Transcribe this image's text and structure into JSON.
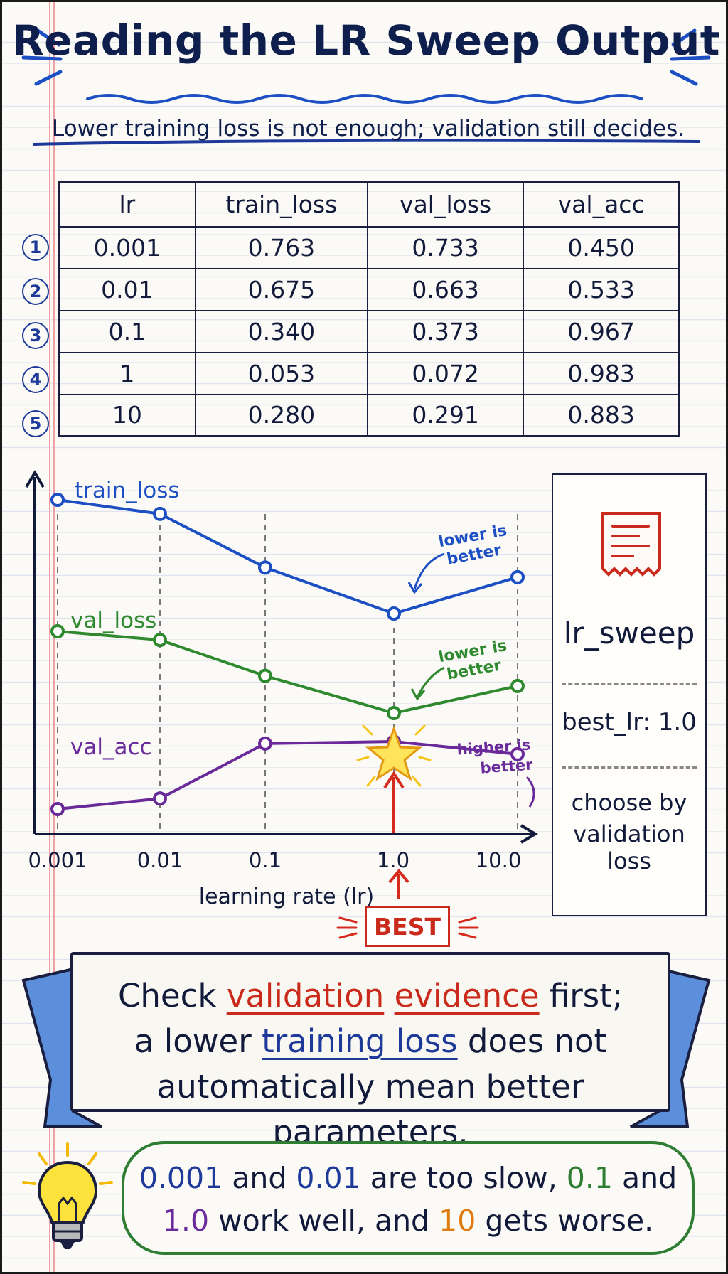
{
  "title": "Reading the LR Sweep Output",
  "subtitle": "Lower training loss is not enough; validation still decides.",
  "table": {
    "headers": [
      "lr",
      "train_loss",
      "val_loss",
      "val_acc"
    ],
    "rows": [
      {
        "num": "1",
        "cells": [
          "0.001",
          "0.763",
          "0.733",
          "0.450"
        ]
      },
      {
        "num": "2",
        "cells": [
          "0.01",
          "0.675",
          "0.663",
          "0.533"
        ]
      },
      {
        "num": "3",
        "cells": [
          "0.1",
          "0.340",
          "0.373",
          "0.967"
        ]
      },
      {
        "num": "4",
        "cells": [
          "1",
          "0.053",
          "0.072",
          "0.983"
        ]
      },
      {
        "num": "5",
        "cells": [
          "10",
          "0.280",
          "0.291",
          "0.883"
        ]
      }
    ]
  },
  "chart": {
    "xlabel": "learning rate (lr)",
    "tick_labels": [
      "0.001",
      "0.01",
      "0.1",
      "1.0",
      "10.0"
    ],
    "series_labels": {
      "train": "train_loss",
      "val": "val_loss",
      "acc": "val_acc"
    },
    "annotations": {
      "train_1": "lower is",
      "train_2": "better",
      "val_1": "lower is",
      "val_2": "better",
      "acc_1": "higher is",
      "acc_2": "better"
    },
    "best_label": "BEST",
    "colors": {
      "train": "#1d4fc4",
      "val": "#2f8a2f",
      "acc": "#6a2a9a",
      "best": "#d62a1c",
      "star": "#f5c518"
    }
  },
  "chart_data": {
    "type": "line",
    "x": [
      "0.001",
      "0.01",
      "0.1",
      "1.0",
      "10.0"
    ],
    "xlabel": "learning rate (lr)",
    "series": [
      {
        "name": "train_loss",
        "values": [
          0.763,
          0.675,
          0.34,
          0.053,
          0.28
        ]
      },
      {
        "name": "val_loss",
        "values": [
          0.733,
          0.663,
          0.373,
          0.072,
          0.291
        ]
      },
      {
        "name": "val_acc",
        "values": [
          0.45,
          0.533,
          0.967,
          0.983,
          0.883
        ]
      }
    ],
    "highlight": {
      "x": "1.0",
      "label": "BEST"
    }
  },
  "receipt": {
    "name": "lr_sweep",
    "best": "best_lr: 1.0",
    "rule_1": "choose by",
    "rule_2": "validation loss"
  },
  "banner": {
    "l1_a": "Check ",
    "l1_red1": "validation",
    "l1_sp": " ",
    "l1_red2": "evidence",
    "l1_b": " first;",
    "l2_a": "a lower ",
    "l2_blue": "training loss",
    "l2_b": " does not",
    "l3": "automatically mean better parameters."
  },
  "tip": {
    "a": "0.001",
    "b": " and ",
    "c": "0.01",
    "d": " are too slow, ",
    "e": "0.1",
    "f": " and",
    "g": "1.0",
    "h": " work well, and ",
    "i": "10",
    "j": " gets worse."
  }
}
